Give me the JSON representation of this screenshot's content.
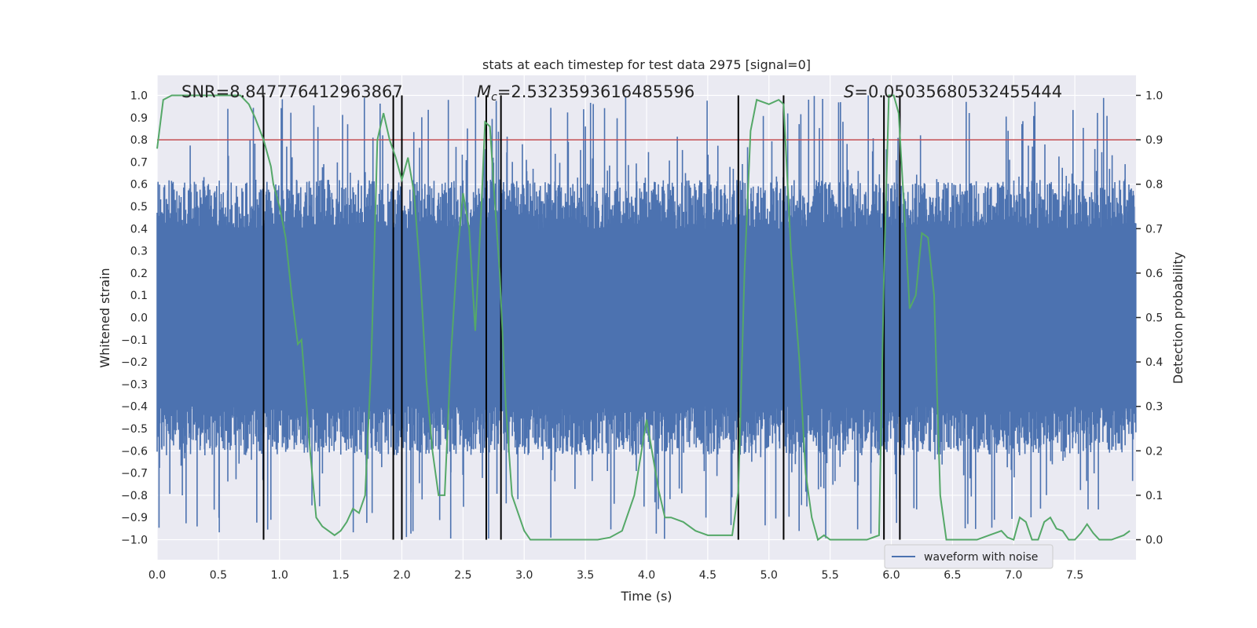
{
  "chart_data": {
    "type": "line",
    "title": "stats at each timestep for test data 2975 [signal=0]",
    "xlabel": "Time (s)",
    "ylabel_left": "Whitened strain",
    "ylabel_right": "Detection probability",
    "xlim": [
      0.0,
      8.0
    ],
    "ylim_left": [
      -1.09,
      1.09
    ],
    "ylim_right": [
      -0.045,
      1.045
    ],
    "x_ticks": [
      "0.0",
      "0.5",
      "1.0",
      "1.5",
      "2.0",
      "2.5",
      "3.0",
      "3.5",
      "4.0",
      "4.5",
      "5.0",
      "5.5",
      "6.0",
      "6.5",
      "7.0",
      "7.5"
    ],
    "y_left_ticks": [
      "1.0",
      "0.9",
      "0.8",
      "0.7",
      "0.6",
      "0.5",
      "0.4",
      "0.3",
      "0.2",
      "0.1",
      "0.0",
      "−0.1",
      "−0.2",
      "−0.3",
      "−0.4",
      "−0.5",
      "−0.6",
      "−0.7",
      "−0.8",
      "−0.9",
      "−1.0"
    ],
    "y_right_ticks": [
      "0.0",
      "0.1",
      "0.2",
      "0.3",
      "0.4",
      "0.5",
      "0.6",
      "0.7",
      "0.8",
      "0.9",
      "1.0"
    ],
    "annotations": {
      "snr": "SNR=8.847776412963867",
      "mc_symbol": "M",
      "mc_subscript": "c",
      "mc_value": "=2.5323593616485596",
      "s_symbol": "S",
      "s_value": "=0.05035680532455444"
    },
    "threshold": {
      "value": 0.9,
      "axis": "right",
      "color": "#c44e52"
    },
    "vertical_lines": [
      0.87,
      1.93,
      2.0,
      2.69,
      2.81,
      4.75,
      5.12,
      5.94,
      6.07
    ],
    "series": [
      {
        "name": "waveform with noise",
        "color": "#4c72b0",
        "axis": "left",
        "band_core": [
          -0.4,
          0.4
        ],
        "band_typical": [
          -0.62,
          0.62
        ],
        "envelope_max": 1.0
      },
      {
        "name": "detection probability",
        "color": "#55a868",
        "axis": "right",
        "x": [
          0.0,
          0.05,
          0.12,
          0.2,
          0.3,
          0.4,
          0.5,
          0.6,
          0.68,
          0.75,
          0.8,
          0.87,
          0.93,
          0.95,
          1.0,
          1.05,
          1.1,
          1.15,
          1.18,
          1.2,
          1.25,
          1.3,
          1.35,
          1.4,
          1.45,
          1.5,
          1.55,
          1.6,
          1.65,
          1.7,
          1.75,
          1.8,
          1.85,
          1.9,
          1.95,
          2.0,
          2.05,
          2.1,
          2.15,
          2.2,
          2.25,
          2.3,
          2.35,
          2.4,
          2.45,
          2.5,
          2.55,
          2.6,
          2.65,
          2.68,
          2.72,
          2.75,
          2.8,
          2.85,
          2.9,
          3.0,
          3.05,
          3.1,
          3.15,
          3.2,
          3.3,
          3.4,
          3.5,
          3.6,
          3.7,
          3.8,
          3.9,
          4.0,
          4.1,
          4.15,
          4.2,
          4.3,
          4.4,
          4.5,
          4.6,
          4.7,
          4.75,
          4.8,
          4.85,
          4.9,
          5.0,
          5.08,
          5.12,
          5.18,
          5.25,
          5.3,
          5.35,
          5.4,
          5.45,
          5.5,
          5.6,
          5.7,
          5.8,
          5.9,
          5.94,
          5.98,
          6.02,
          6.06,
          6.1,
          6.15,
          6.2,
          6.25,
          6.3,
          6.35,
          6.4,
          6.45,
          6.5,
          6.6,
          6.7,
          6.8,
          6.9,
          6.95,
          7.0,
          7.05,
          7.1,
          7.15,
          7.2,
          7.25,
          7.3,
          7.35,
          7.4,
          7.45,
          7.5,
          7.55,
          7.6,
          7.65,
          7.7,
          7.8,
          7.9,
          7.95
        ],
        "y": [
          0.88,
          0.99,
          1.0,
          1.0,
          1.0,
          1.0,
          1.0,
          1.0,
          1.0,
          0.98,
          0.95,
          0.9,
          0.84,
          0.8,
          0.75,
          0.68,
          0.55,
          0.44,
          0.45,
          0.38,
          0.2,
          0.05,
          0.03,
          0.02,
          0.01,
          0.02,
          0.04,
          0.07,
          0.06,
          0.1,
          0.4,
          0.9,
          0.96,
          0.9,
          0.86,
          0.81,
          0.86,
          0.78,
          0.6,
          0.36,
          0.2,
          0.1,
          0.1,
          0.41,
          0.63,
          0.78,
          0.7,
          0.47,
          0.75,
          0.94,
          0.93,
          0.8,
          0.6,
          0.3,
          0.1,
          0.02,
          0.0,
          0.0,
          0.0,
          0.0,
          0.0,
          0.0,
          0.0,
          0.0,
          0.005,
          0.02,
          0.1,
          0.27,
          0.11,
          0.05,
          0.05,
          0.04,
          0.02,
          0.01,
          0.01,
          0.01,
          0.11,
          0.6,
          0.92,
          0.99,
          0.98,
          0.99,
          0.98,
          0.65,
          0.4,
          0.15,
          0.05,
          0.0,
          0.01,
          0.0,
          0.0,
          0.0,
          0.0,
          0.01,
          0.6,
          1.0,
          1.0,
          0.96,
          0.77,
          0.52,
          0.55,
          0.69,
          0.68,
          0.55,
          0.1,
          0.0,
          0.0,
          0.0,
          0.0,
          0.01,
          0.02,
          0.005,
          0.0,
          0.05,
          0.04,
          0.0,
          0.0,
          0.04,
          0.05,
          0.025,
          0.02,
          0.0,
          0.0,
          0.015,
          0.035,
          0.015,
          0.0,
          0.0,
          0.01,
          0.02
        ]
      }
    ],
    "legend": {
      "label": "waveform with noise",
      "position": "lower-right"
    }
  }
}
